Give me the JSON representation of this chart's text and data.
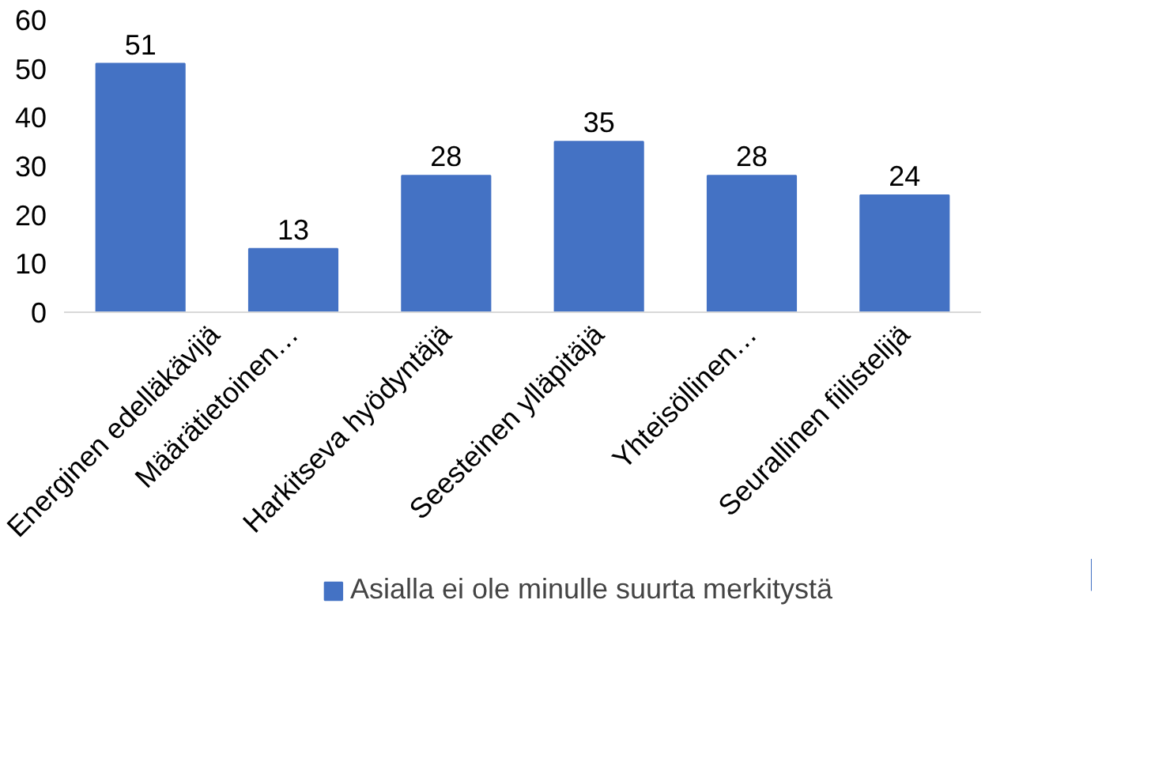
{
  "chart_data": {
    "type": "bar",
    "categories": [
      "Energinen edelläkävijä",
      "Määrätietoinen…",
      "Harkitseva hyödyntäjä",
      "Seesteinen ylläpitäjä",
      "Yhteisöllinen…",
      "Seurallinen fiilistelijä"
    ],
    "series": [
      {
        "name": "Asialla ei ole minulle suurta merkitystä",
        "color": "#4472c4",
        "values": [
          51,
          13,
          28,
          35,
          28,
          24
        ]
      }
    ],
    "ylim": [
      0,
      60
    ],
    "yticks": [
      0,
      10,
      20,
      30,
      40,
      50,
      60
    ],
    "grid": false,
    "legend": "bottom",
    "data_labels": true
  }
}
